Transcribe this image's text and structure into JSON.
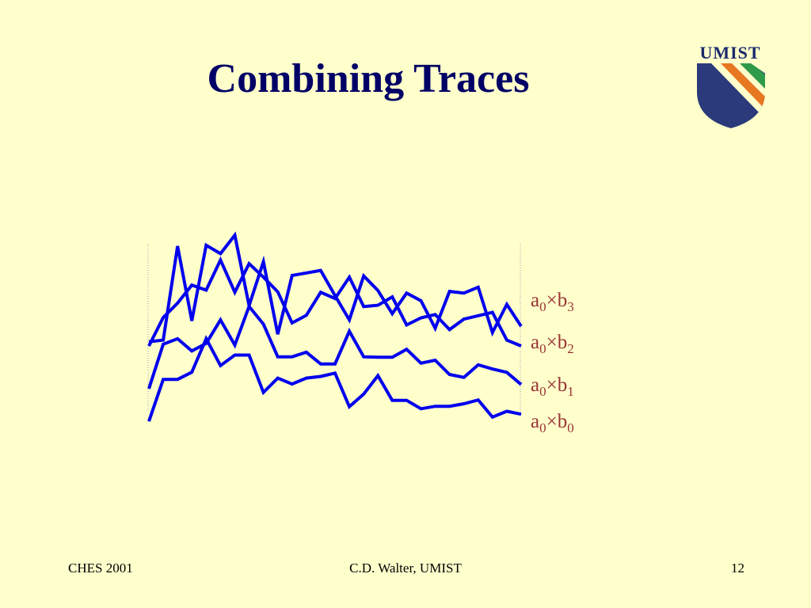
{
  "slide": {
    "title": "Combining Traces",
    "footer": {
      "left": "CHES 2001",
      "center": "C.D. Walter, UMIST",
      "right": "12"
    }
  },
  "logo": {
    "text": "UMIST",
    "colors": {
      "shield": "#2a3a7a",
      "stripe_orange": "#e87722",
      "stripe_green": "#2f9a4a",
      "text": "#1b2a6b"
    }
  },
  "colors": {
    "background": "#ffffcc",
    "title": "#000066",
    "trace": "#0000ee",
    "label": "#993333",
    "bracket": "#9999bb"
  },
  "chart_data": {
    "type": "line",
    "title": "",
    "xlabel": "",
    "ylabel": "",
    "x": [
      0,
      1,
      2,
      3,
      4,
      5,
      6,
      7,
      8,
      9,
      10,
      11,
      12,
      13,
      14,
      15,
      16,
      17,
      18,
      19,
      20,
      21,
      22,
      23,
      24,
      25,
      26
    ],
    "series": [
      {
        "label": {
          "base": "a",
          "sub1": "0",
          "op": "×",
          "var": "b",
          "sub2": "3"
        },
        "values": [
          0.1,
          0.14,
          2.38,
          0.6,
          2.4,
          2.2,
          2.64,
          0.96,
          2.01,
          0.28,
          1.68,
          1.74,
          1.8,
          1.2,
          0.62,
          1.67,
          1.32,
          0.77,
          1.26,
          1.08,
          0.42,
          1.3,
          1.26,
          1.4,
          0.32,
          0.99,
          0.47
        ]
      },
      {
        "label": {
          "base": "a",
          "sub1": "0",
          "op": "×",
          "var": "b",
          "sub2": "2"
        },
        "values": [
          0.0,
          0.68,
          1.02,
          1.45,
          1.33,
          2.05,
          1.28,
          1.96,
          1.64,
          1.29,
          0.55,
          0.73,
          1.28,
          1.13,
          1.64,
          0.94,
          0.97,
          1.17,
          0.5,
          0.67,
          0.75,
          0.39,
          0.64,
          0.72,
          0.8,
          0.14,
          0.0
        ]
      },
      {
        "label": {
          "base": "a",
          "sub1": "0",
          "op": "×",
          "var": "b",
          "sub2": "1"
        },
        "values": [
          0.0,
          1.06,
          1.19,
          0.9,
          1.08,
          1.64,
          1.04,
          1.96,
          1.54,
          0.76,
          0.76,
          0.87,
          0.59,
          0.59,
          1.37,
          0.76,
          0.75,
          0.75,
          0.94,
          0.61,
          0.68,
          0.34,
          0.27,
          0.57,
          0.47,
          0.39,
          0.1
        ]
      },
      {
        "label": {
          "base": "a",
          "sub1": "0",
          "op": "×",
          "var": "b",
          "sub2": "0"
        },
        "values": [
          -0.08,
          0.92,
          0.92,
          1.09,
          1.89,
          1.25,
          1.5,
          1.5,
          0.61,
          0.95,
          0.81,
          0.95,
          0.99,
          1.07,
          0.27,
          0.57,
          1.01,
          0.42,
          0.42,
          0.22,
          0.28,
          0.28,
          0.34,
          0.43,
          0.02,
          0.16,
          0.09
        ]
      }
    ]
  }
}
